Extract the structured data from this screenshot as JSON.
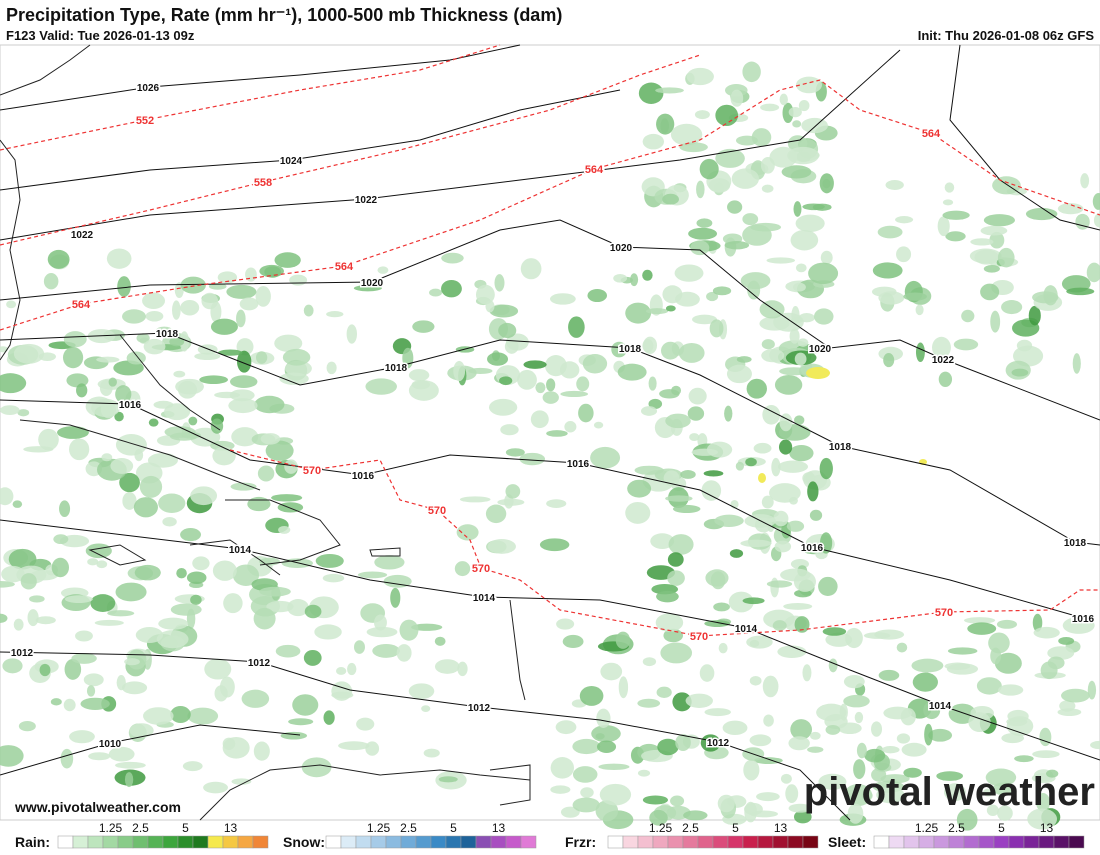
{
  "header": {
    "title": "Precipitation Type, Rate (mm hr⁻¹), 1000-500 mb Thickness (dam)",
    "valid": "F123 Valid: Tue 2026-01-13 09z",
    "init": "Init: Thu 2026-01-08 06z GFS"
  },
  "map": {
    "isobar_labels": [
      "1026",
      "1024",
      "1022",
      "1022",
      "1020",
      "1020",
      "1018",
      "1018",
      "1018",
      "1020",
      "1022",
      "1018",
      "1016",
      "1016",
      "1016",
      "1016",
      "1018",
      "1016",
      "1014",
      "1014",
      "1014",
      "1014",
      "1012",
      "1012",
      "1012",
      "1012",
      "1010"
    ],
    "thickness_labels": [
      "552",
      "558",
      "564",
      "564",
      "564",
      "564",
      "570",
      "570",
      "570",
      "570",
      "570"
    ],
    "url": "www.pivotalweather.com",
    "brand": "pivotal weather"
  },
  "legend": [
    {
      "name": "Rain:",
      "colors": [
        "#ffffff",
        "#d6f0d6",
        "#bde5bd",
        "#a3d9a3",
        "#89cc89",
        "#70bf70",
        "#56b356",
        "#3da63d",
        "#2b8f2b",
        "#1f7a1f",
        "#f5e94d",
        "#f5c842",
        "#f5a742",
        "#f08637"
      ]
    },
    {
      "name": "Snow:",
      "colors": [
        "#ffffff",
        "#dcecf7",
        "#c1dcf0",
        "#a6cbe8",
        "#8bbbe0",
        "#70abd8",
        "#559bcf",
        "#3a8ac6",
        "#2a76b0",
        "#1e639a",
        "#8a4fb3",
        "#a84fc0",
        "#c65acb",
        "#e07ad6"
      ]
    },
    {
      "name": "Frzr:",
      "colors": [
        "#ffffff",
        "#f9d6e0",
        "#f4bfd0",
        "#efa8bf",
        "#ea91ae",
        "#e57a9d",
        "#e0638c",
        "#db4c7b",
        "#d6356a",
        "#c9204d",
        "#b5183f",
        "#a11030",
        "#8c0a22",
        "#780414"
      ]
    },
    {
      "name": "Sleet:",
      "colors": [
        "#ffffff",
        "#eedaf3",
        "#e2c4ec",
        "#d6aee5",
        "#ca98de",
        "#be82d7",
        "#b26cd0",
        "#a656c9",
        "#9a40c2",
        "#8a30b0",
        "#7a2498",
        "#6a1a80",
        "#5a1268",
        "#4a0a50"
      ]
    }
  ],
  "legend_ticks": [
    1.25,
    2.5,
    5,
    13
  ]
}
